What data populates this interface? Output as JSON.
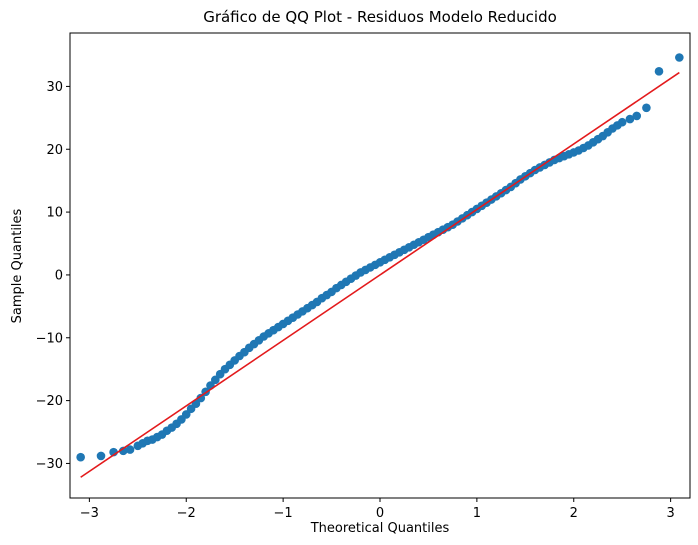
{
  "chart_data": {
    "type": "scatter",
    "title": "Gráfico de QQ Plot - Residuos Modelo Reducido",
    "xlabel": "Theoretical Quantiles",
    "ylabel": "Sample Quantiles",
    "xlim": [
      -3.2,
      3.2
    ],
    "ylim": [
      -35.5,
      38.5
    ],
    "xticks": [
      -3,
      -2,
      -1,
      0,
      1,
      2,
      3
    ],
    "xtick_labels": [
      "−3",
      "−2",
      "−1",
      "0",
      "1",
      "2",
      "3"
    ],
    "yticks": [
      -30,
      -20,
      -10,
      0,
      10,
      20,
      30
    ],
    "ytick_labels": [
      "−30",
      "−20",
      "−10",
      "0",
      "10",
      "20",
      "30"
    ],
    "grid": false,
    "legend": "none",
    "series": [
      {
        "kind": "points",
        "color": "#1f77b4",
        "x": [
          -3.09,
          -2.88,
          -2.75,
          -2.65,
          -2.58,
          -2.5,
          -2.45,
          -2.4,
          -2.35,
          -2.3,
          -2.25,
          -2.2,
          -2.15,
          -2.1,
          -2.05,
          -2.0,
          -1.95,
          -1.9,
          -1.85,
          -1.8,
          -1.75,
          -1.7,
          -1.65,
          -1.6,
          -1.55,
          -1.5,
          -1.45,
          -1.4,
          -1.35,
          -1.3,
          -1.25,
          -1.2,
          -1.15,
          -1.1,
          -1.05,
          -1.0,
          -0.95,
          -0.9,
          -0.85,
          -0.8,
          -0.75,
          -0.7,
          -0.65,
          -0.6,
          -0.55,
          -0.5,
          -0.45,
          -0.4,
          -0.35,
          -0.3,
          -0.25,
          -0.2,
          -0.15,
          -0.1,
          -0.05,
          0.0,
          0.05,
          0.1,
          0.15,
          0.2,
          0.25,
          0.3,
          0.35,
          0.4,
          0.45,
          0.5,
          0.55,
          0.6,
          0.65,
          0.7,
          0.75,
          0.8,
          0.85,
          0.9,
          0.95,
          1.0,
          1.05,
          1.1,
          1.15,
          1.2,
          1.25,
          1.3,
          1.35,
          1.4,
          1.45,
          1.5,
          1.55,
          1.6,
          1.65,
          1.7,
          1.75,
          1.8,
          1.85,
          1.9,
          1.95,
          2.0,
          2.05,
          2.1,
          2.15,
          2.2,
          2.25,
          2.3,
          2.35,
          2.4,
          2.45,
          2.5,
          2.58,
          2.65,
          2.75,
          2.88,
          3.09
        ],
        "y": [
          -29.0,
          -28.8,
          -28.2,
          -28.0,
          -27.8,
          -27.2,
          -26.8,
          -26.4,
          -26.2,
          -25.8,
          -25.4,
          -24.8,
          -24.3,
          -23.7,
          -23.0,
          -22.2,
          -21.3,
          -20.5,
          -19.6,
          -18.6,
          -17.6,
          -16.7,
          -15.8,
          -15.0,
          -14.3,
          -13.6,
          -12.9,
          -12.3,
          -11.6,
          -11.0,
          -10.4,
          -9.8,
          -9.3,
          -8.8,
          -8.3,
          -7.8,
          -7.3,
          -6.8,
          -6.3,
          -5.8,
          -5.3,
          -4.8,
          -4.3,
          -3.7,
          -3.2,
          -2.7,
          -2.1,
          -1.6,
          -1.1,
          -0.6,
          -0.1,
          0.4,
          0.8,
          1.2,
          1.6,
          2.0,
          2.4,
          2.8,
          3.2,
          3.6,
          4.0,
          4.4,
          4.8,
          5.2,
          5.6,
          6.0,
          6.4,
          6.8,
          7.2,
          7.6,
          8.0,
          8.5,
          9.0,
          9.5,
          10.0,
          10.5,
          11.0,
          11.5,
          12.0,
          12.5,
          13.0,
          13.5,
          14.0,
          14.6,
          15.2,
          15.7,
          16.2,
          16.7,
          17.1,
          17.5,
          17.9,
          18.3,
          18.6,
          18.9,
          19.2,
          19.5,
          19.8,
          20.2,
          20.6,
          21.1,
          21.6,
          22.1,
          22.7,
          23.3,
          23.8,
          24.3,
          24.8,
          25.3,
          26.6,
          32.4,
          34.6
        ]
      },
      {
        "kind": "reference-line",
        "color": "#e31a1c",
        "x": [
          -3.09,
          3.09
        ],
        "y": [
          -32.2,
          32.2
        ]
      }
    ]
  }
}
